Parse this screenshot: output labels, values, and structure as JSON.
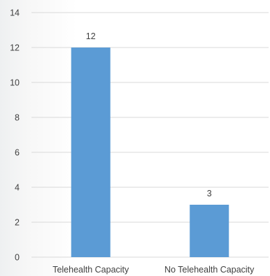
{
  "chart_data": {
    "type": "bar",
    "categories": [
      "Telehealth Capacity",
      "No Telehealth Capacity"
    ],
    "values": [
      12,
      3
    ],
    "title": "",
    "xlabel": "",
    "ylabel": "",
    "ylim": [
      0,
      14
    ],
    "yticks": [
      0,
      2,
      4,
      6,
      8,
      10,
      12,
      14
    ],
    "grid": true,
    "data_labels": true,
    "bar_color": "#5b9bd5"
  }
}
